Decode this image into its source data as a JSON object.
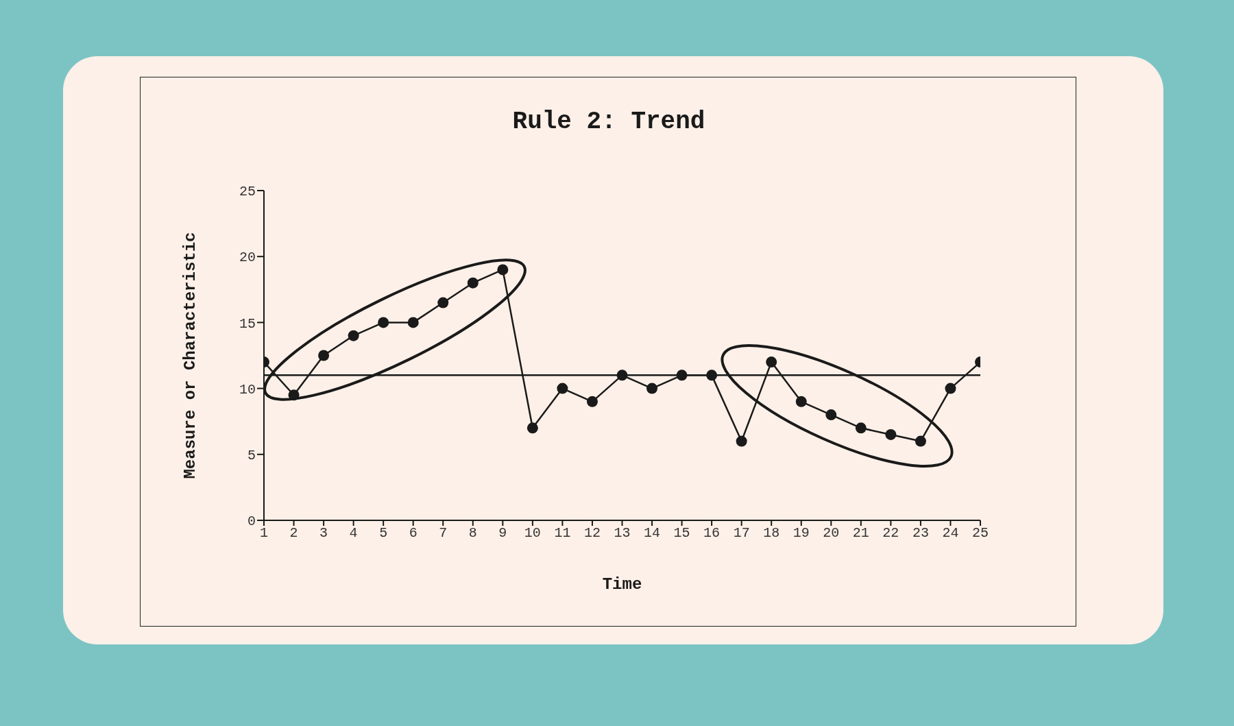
{
  "chart_data": {
    "type": "line",
    "title": "Rule 2: Trend",
    "xlabel": "Time",
    "ylabel": "Measure or Characteristic",
    "x": [
      1,
      2,
      3,
      4,
      5,
      6,
      7,
      8,
      9,
      10,
      11,
      12,
      13,
      14,
      15,
      16,
      17,
      18,
      19,
      20,
      21,
      22,
      23,
      24,
      25
    ],
    "series": [
      {
        "color": "#1a1a1a",
        "values": [
          12,
          9.5,
          12.5,
          14,
          15,
          15,
          16.5,
          18,
          19,
          7,
          10,
          9,
          11,
          10,
          11,
          11,
          6,
          12,
          9,
          8,
          7,
          6.5,
          6,
          10,
          12
        ]
      }
    ],
    "xlim": [
      1,
      25
    ],
    "xticks": [
      1,
      2,
      3,
      4,
      5,
      6,
      7,
      8,
      9,
      10,
      11,
      12,
      13,
      14,
      15,
      16,
      17,
      18,
      19,
      20,
      21,
      22,
      23,
      24,
      25
    ],
    "ylim": [
      0,
      25
    ],
    "yticks": [
      0,
      5,
      10,
      15,
      20,
      25
    ],
    "ref_lines": [
      {
        "axis": "y",
        "value": 11,
        "color": "#1a1a1a"
      }
    ],
    "marker": "circle",
    "line_style": "solid"
  }
}
